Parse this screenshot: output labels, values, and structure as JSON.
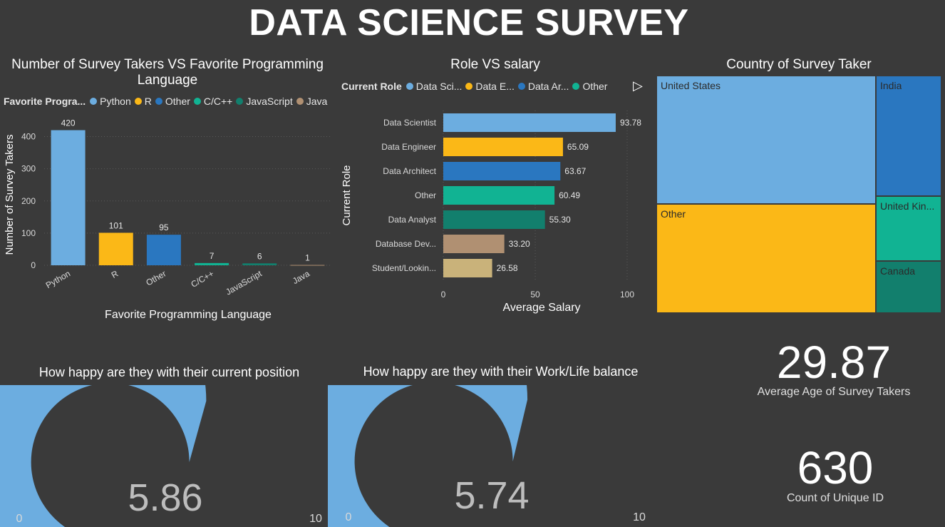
{
  "title": "DATA SCIENCE SURVEY",
  "lang_chart": {
    "panel_title": "Number of Survey Takers VS Favorite Programming Language",
    "legend_title": "Favorite Progra...",
    "legend": [
      {
        "label": "Python",
        "color": "#6cade0"
      },
      {
        "label": "R",
        "color": "#fbb817"
      },
      {
        "label": "Other",
        "color": "#2a77c0"
      },
      {
        "label": "C/C++",
        "color": "#11b393"
      },
      {
        "label": "JavaScript",
        "color": "#127f6d"
      },
      {
        "label": "Java",
        "color": "#b09072"
      }
    ]
  },
  "salary_chart": {
    "panel_title": "Role VS salary",
    "legend_title": "Current Role",
    "legend": [
      {
        "label": "Data Sci...",
        "color": "#6cade0"
      },
      {
        "label": "Data E...",
        "color": "#fbb817"
      },
      {
        "label": "Data Ar...",
        "color": "#2a77c0"
      },
      {
        "label": "Other",
        "color": "#11b393"
      }
    ],
    "next_arrow": "▷"
  },
  "country_chart": {
    "panel_title": "Country of Survey Taker",
    "cells": [
      {
        "label": "United States",
        "color": "#6cade0"
      },
      {
        "label": "India",
        "color": "#2a77c0"
      },
      {
        "label": "Other",
        "color": "#fbb817"
      },
      {
        "label": "United Kin...",
        "color": "#11b393"
      },
      {
        "label": "Canada",
        "color": "#127f6d"
      }
    ]
  },
  "gauge1": {
    "title": "How happy are they with their current position",
    "value": 5.86,
    "value_text": "5.86",
    "min": "0",
    "max": "10",
    "color": "#6cade0"
  },
  "gauge2": {
    "title": "How happy are they with their Work/Life balance",
    "value": 5.74,
    "value_text": "5.74",
    "min": "0",
    "max": "10",
    "color": "#6cade0"
  },
  "kpi_age": {
    "value": "29.87",
    "label": "Average Age of Survey Takers"
  },
  "kpi_count": {
    "value": "630",
    "label": "Count of Unique ID"
  },
  "chart_data": [
    {
      "type": "bar",
      "title": "Number of Survey Takers VS Favorite Programming Language",
      "xlabel": "Favorite Programming Language",
      "ylabel": "Number of Survey Takers",
      "categories": [
        "Python",
        "R",
        "Other",
        "C/C++",
        "JavaScript",
        "Java"
      ],
      "values": [
        420,
        101,
        95,
        7,
        6,
        1
      ],
      "colors": [
        "#6cade0",
        "#fbb817",
        "#2a77c0",
        "#11b393",
        "#127f6d",
        "#b09072"
      ],
      "ylim": [
        0,
        450
      ],
      "yticks": [
        0,
        100,
        200,
        300,
        400
      ],
      "grid": true,
      "legend": "top-left"
    },
    {
      "type": "bar",
      "orientation": "horizontal",
      "title": "Role VS salary",
      "xlabel": "Average Salary",
      "ylabel": "Current Role",
      "categories": [
        "Data Scientist",
        "Data Engineer",
        "Data Architect",
        "Other",
        "Data Analyst",
        "Database Dev...",
        "Student/Lookin..."
      ],
      "values": [
        93.78,
        65.09,
        63.67,
        60.49,
        55.3,
        33.2,
        26.58
      ],
      "value_labels": [
        "93.78",
        "65.09",
        "63.67",
        "60.49",
        "55.30",
        "33.20",
        "26.58"
      ],
      "colors": [
        "#6cade0",
        "#fbb817",
        "#2a77c0",
        "#11b393",
        "#127f6d",
        "#b09072",
        "#c9b27a"
      ],
      "xlim": [
        0,
        100
      ],
      "xticks": [
        0,
        50,
        100
      ],
      "grid": true,
      "legend": "top-left"
    }
  ]
}
